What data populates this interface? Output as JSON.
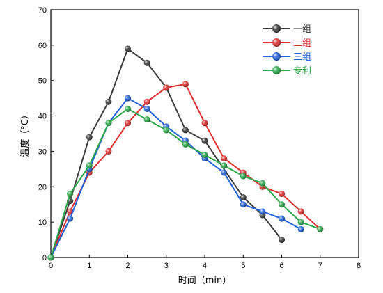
{
  "chart_data": {
    "type": "line",
    "title": "",
    "xlabel": "时间（min）",
    "ylabel": "温度（°C）",
    "xlim": [
      0,
      8
    ],
    "ylim": [
      0,
      70
    ],
    "xticks": [
      0,
      1,
      2,
      3,
      4,
      5,
      6,
      7,
      8
    ],
    "yticks": [
      0,
      10,
      20,
      30,
      40,
      50,
      60,
      70
    ],
    "grid": false,
    "legend_position": "top-right",
    "series": [
      {
        "name": "一组",
        "color": "#3a3a3a",
        "points": [
          [
            0,
            0
          ],
          [
            0.5,
            16
          ],
          [
            1,
            34
          ],
          [
            1.5,
            44
          ],
          [
            2,
            59
          ],
          [
            2.5,
            55
          ],
          [
            3,
            48
          ],
          [
            3.5,
            36
          ],
          [
            4,
            33
          ],
          [
            5,
            17
          ],
          [
            5.5,
            12
          ],
          [
            6,
            5
          ]
        ]
      },
      {
        "name": "二组",
        "color": "#e03030",
        "points": [
          [
            0,
            0
          ],
          [
            0.5,
            13
          ],
          [
            1,
            24
          ],
          [
            1.5,
            30
          ],
          [
            2,
            38
          ],
          [
            2.5,
            44
          ],
          [
            3,
            48
          ],
          [
            3.5,
            49
          ],
          [
            4,
            38
          ],
          [
            4.5,
            28
          ],
          [
            5,
            24
          ],
          [
            5.5,
            20
          ],
          [
            6,
            18
          ],
          [
            6.5,
            13
          ],
          [
            7,
            8
          ]
        ]
      },
      {
        "name": "三组",
        "color": "#2060d8",
        "points": [
          [
            0,
            0
          ],
          [
            0.5,
            11
          ],
          [
            1,
            25
          ],
          [
            1.5,
            38
          ],
          [
            2,
            45
          ],
          [
            2.5,
            42
          ],
          [
            3,
            37
          ],
          [
            3.5,
            33
          ],
          [
            4,
            28
          ],
          [
            4.5,
            24
          ],
          [
            5,
            15
          ],
          [
            5.5,
            13
          ],
          [
            6,
            11
          ],
          [
            6.5,
            8
          ]
        ]
      },
      {
        "name": "专利",
        "color": "#2aa84a",
        "points": [
          [
            0,
            0
          ],
          [
            0.5,
            18
          ],
          [
            1,
            26
          ],
          [
            1.5,
            38
          ],
          [
            2,
            42
          ],
          [
            2.5,
            39
          ],
          [
            3,
            36
          ],
          [
            3.5,
            32
          ],
          [
            4,
            29
          ],
          [
            4.5,
            26
          ],
          [
            5,
            23
          ],
          [
            5.5,
            21
          ],
          [
            6,
            15
          ],
          [
            6.5,
            10
          ],
          [
            7,
            8
          ]
        ]
      }
    ]
  }
}
